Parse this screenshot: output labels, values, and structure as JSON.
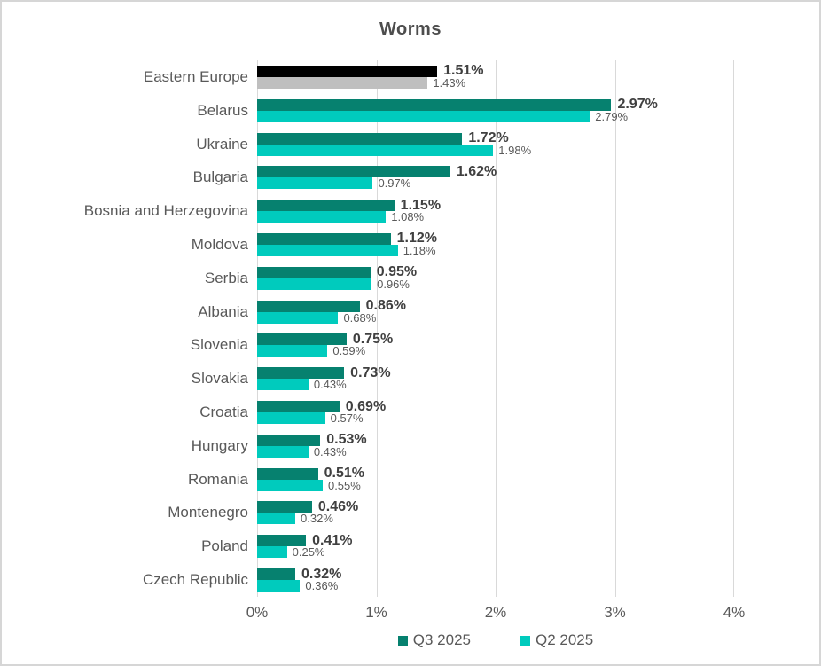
{
  "title": "Worms",
  "chart_data": {
    "type": "bar",
    "orientation": "horizontal",
    "title": "Worms",
    "xlabel": "",
    "ylabel": "",
    "xlim": [
      0,
      4
    ],
    "x_ticks": [
      "0%",
      "1%",
      "2%",
      "3%",
      "4%"
    ],
    "x_tick_values": [
      0,
      1,
      2,
      3,
      4
    ],
    "grid": "vertical",
    "legend_position": "bottom-center",
    "value_label_format": "0.00%",
    "categories": [
      "Eastern Europe",
      "Belarus",
      "Ukraine",
      "Bulgaria",
      "Bosnia and Herzegovina",
      "Moldova",
      "Serbia",
      "Albania",
      "Slovenia",
      "Slovakia",
      "Croatia",
      "Hungary",
      "Romania",
      "Montenegro",
      "Poland",
      "Czech Republic"
    ],
    "series": [
      {
        "name": "Q3 2025",
        "color": "#06816F",
        "values": [
          1.51,
          2.97,
          1.72,
          1.62,
          1.15,
          1.12,
          0.95,
          0.86,
          0.75,
          0.73,
          0.69,
          0.53,
          0.51,
          0.46,
          0.41,
          0.32
        ]
      },
      {
        "name": "Q2 2025",
        "color": "#00CBBD",
        "values": [
          1.43,
          2.79,
          1.98,
          0.97,
          1.08,
          1.18,
          0.96,
          0.68,
          0.59,
          0.43,
          0.57,
          0.43,
          0.55,
          0.32,
          0.25,
          0.36
        ]
      }
    ],
    "category_color_overrides": {
      "Eastern Europe": [
        "#000000",
        "#BFBFBF"
      ]
    },
    "colors": {
      "gridline": "#d9d9d9",
      "title_text": "#4d4d4d",
      "axis_text": "#595959",
      "value_label_primary": "#404040",
      "value_label_secondary": "#595959"
    }
  }
}
